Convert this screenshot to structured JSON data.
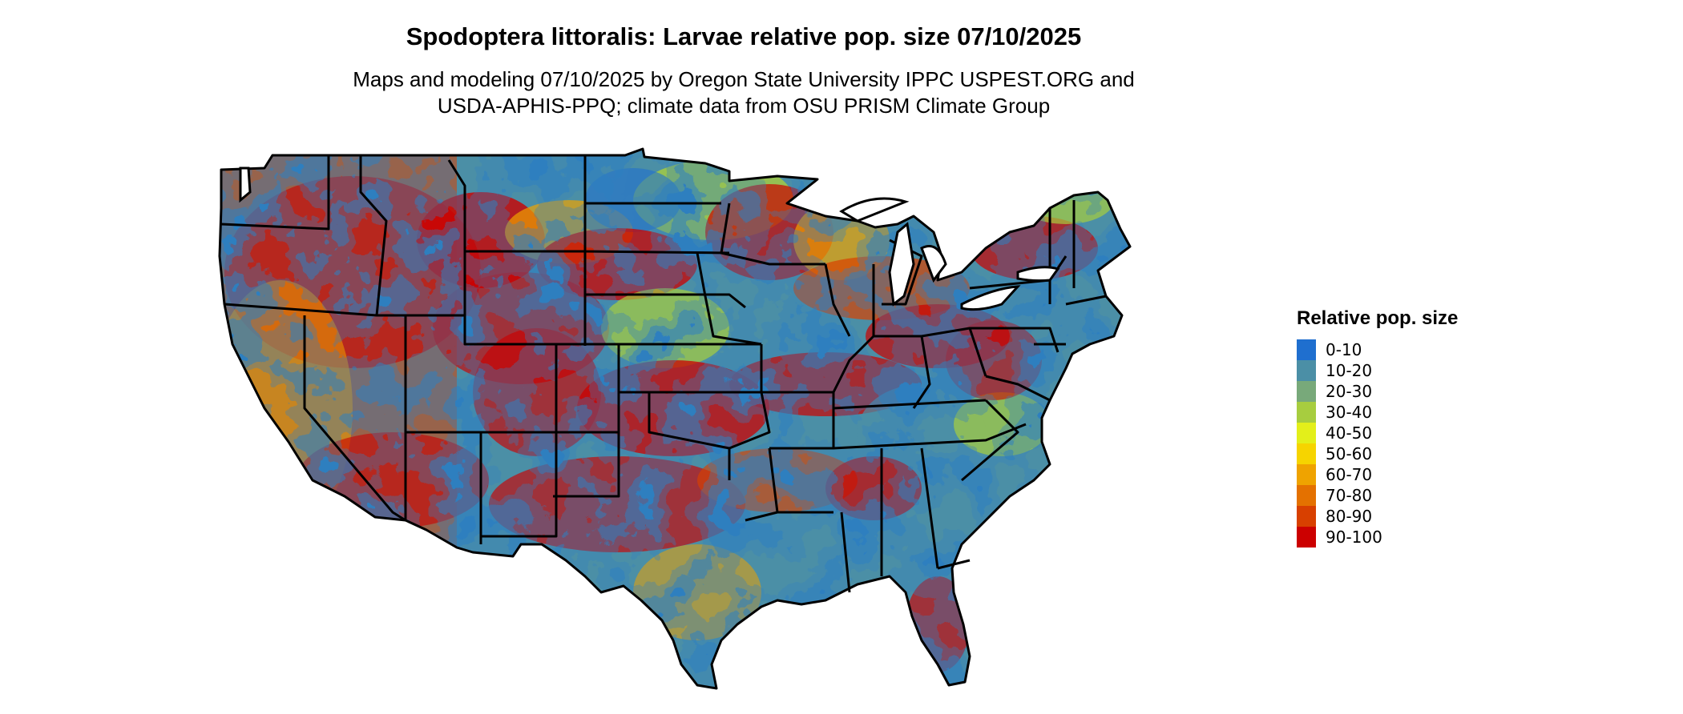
{
  "title": "Spodoptera littoralis: Larvae relative pop. size 07/10/2025",
  "subtitle_line1": "Maps and modeling 07/10/2025 by Oregon State University IPPC USPEST.ORG and",
  "subtitle_line2": "USDA-APHIS-PPQ; climate data from OSU PRISM Climate Group",
  "map": {
    "region": "Contiguous United States",
    "value_field": "Relative pop. size",
    "boundary_color": "#000000"
  },
  "legend": {
    "title": "Relative pop. size",
    "items": [
      {
        "label": "0-10",
        "color": "#1f6fcf"
      },
      {
        "label": "10-20",
        "color": "#4b8fa6"
      },
      {
        "label": "20-30",
        "color": "#78a97a"
      },
      {
        "label": "30-40",
        "color": "#a7cd3f"
      },
      {
        "label": "40-50",
        "color": "#e3ef1a"
      },
      {
        "label": "50-60",
        "color": "#f6d400"
      },
      {
        "label": "60-70",
        "color": "#efa300"
      },
      {
        "label": "70-80",
        "color": "#e47100"
      },
      {
        "label": "80-90",
        "color": "#d84000"
      },
      {
        "label": "90-100",
        "color": "#cc0000"
      }
    ]
  }
}
